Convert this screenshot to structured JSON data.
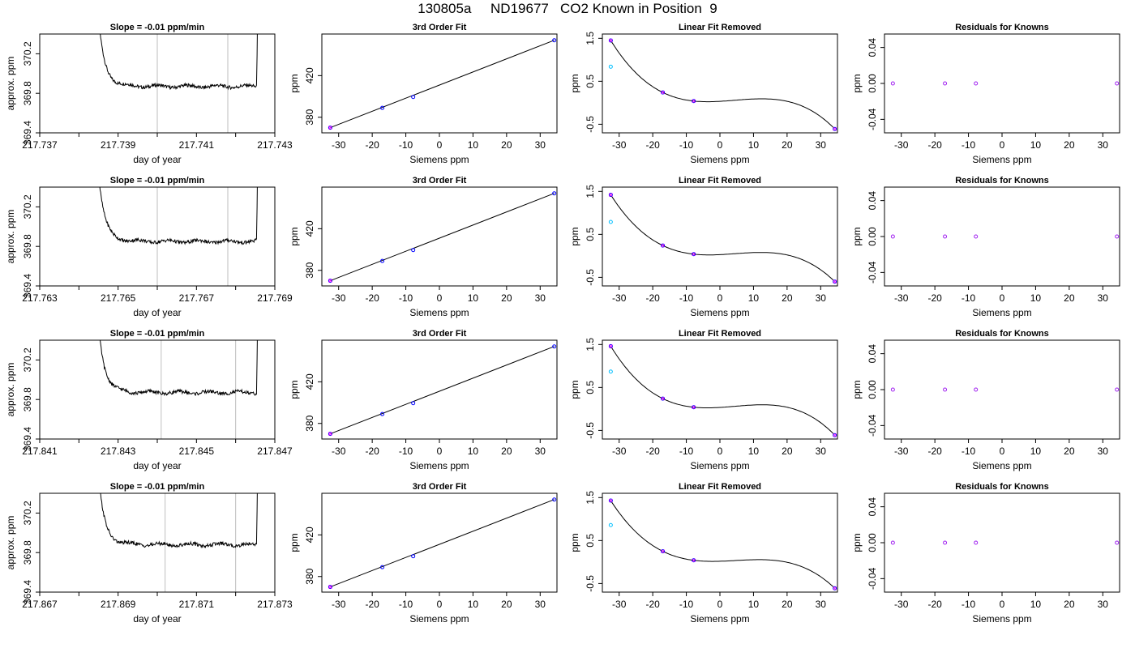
{
  "page_title": "130805a     ND19677   CO2 Known in Position  9",
  "colors": {
    "trace": "#000000",
    "marker_line": "#bebebe",
    "known_point": "#0000ff",
    "fit_cross": "#ff00ff",
    "first_point": "#00bfff",
    "residual_point": "#a020f0"
  },
  "chart_data": [
    {
      "type": "line",
      "row": 0,
      "title": "Slope =  -0.01  ppm/min",
      "xlabel": "day of year",
      "ylabel": "approx. ppm",
      "xlim": [
        217.737,
        217.743
      ],
      "ylim": [
        369.4,
        370.4
      ],
      "x_ticks": [
        "217.737",
        "217.739",
        "217.741",
        "217.743"
      ],
      "y_ticks": [
        "369.4",
        "369.8",
        "370.2"
      ],
      "trace_start": 217.7383,
      "trace_end": 217.7426,
      "plateau": 369.87,
      "markers": [
        217.74,
        217.7418
      ]
    },
    {
      "type": "scatter",
      "row": 0,
      "title": "3rd Order Fit",
      "xlabel": "Siemens ppm",
      "ylabel": "ppm",
      "xlim": [
        -35,
        35
      ],
      "ylim": [
        365,
        460
      ],
      "x_ticks": [
        "-30",
        "-20",
        "-10",
        "0",
        "10",
        "20",
        "30"
      ],
      "y_ticks": [
        "380",
        "420"
      ],
      "x": [
        -32.5,
        -17.0,
        -7.8,
        34.2
      ],
      "y": [
        370.0,
        389.0,
        399.5,
        454.0
      ]
    },
    {
      "type": "scatter",
      "row": 0,
      "title": "Linear Fit Removed",
      "xlabel": "Siemens ppm",
      "ylabel": "ppm",
      "xlim": [
        -35,
        35
      ],
      "ylim": [
        -0.7,
        1.6
      ],
      "x_ticks": [
        "-30",
        "-20",
        "-10",
        "0",
        "10",
        "20",
        "30"
      ],
      "y_ticks": [
        "-0.5",
        "0.5",
        "1.5"
      ],
      "x": [
        -32.5,
        -17.0,
        -7.8,
        34.2
      ],
      "y": [
        1.45,
        0.24,
        0.04,
        -0.61
      ],
      "first_point_y": 0.84
    },
    {
      "type": "scatter",
      "row": 0,
      "title": "Residuals for Knowns",
      "xlabel": "Siemens ppm",
      "ylabel": "ppm",
      "xlim": [
        -35,
        35
      ],
      "ylim": [
        -0.055,
        0.055
      ],
      "x_ticks": [
        "-30",
        "-20",
        "-10",
        "0",
        "10",
        "20",
        "30"
      ],
      "y_ticks": [
        "-0.04",
        "0.00",
        "0.04"
      ],
      "x": [
        -32.5,
        -17.0,
        -7.8,
        34.2
      ],
      "y": [
        0.0,
        0.0,
        0.0,
        0.0
      ]
    },
    {
      "type": "line",
      "row": 1,
      "title": "Slope =  -0.01  ppm/min",
      "xlabel": "day of year",
      "ylabel": "approx. ppm",
      "xlim": [
        217.763,
        217.769
      ],
      "ylim": [
        369.4,
        370.4
      ],
      "x_ticks": [
        "217.763",
        "217.765",
        "217.767",
        "217.769"
      ],
      "y_ticks": [
        "369.4",
        "369.8",
        "370.2"
      ],
      "trace_start": 217.7643,
      "trace_end": 217.7686,
      "plateau": 369.85,
      "markers": [
        217.766,
        217.7678
      ]
    },
    {
      "type": "scatter",
      "row": 1,
      "title": "3rd Order Fit",
      "xlabel": "Siemens ppm",
      "ylabel": "ppm",
      "xlim": [
        -35,
        35
      ],
      "ylim": [
        365,
        460
      ],
      "x_ticks": [
        "-30",
        "-20",
        "-10",
        "0",
        "10",
        "20",
        "30"
      ],
      "y_ticks": [
        "380",
        "420"
      ],
      "x": [
        -32.5,
        -17.0,
        -7.8,
        34.2
      ],
      "y": [
        370.0,
        389.0,
        399.5,
        454.0
      ]
    },
    {
      "type": "scatter",
      "row": 1,
      "title": "Linear Fit Removed",
      "xlabel": "Siemens ppm",
      "ylabel": "ppm",
      "xlim": [
        -35,
        35
      ],
      "ylim": [
        -0.7,
        1.6
      ],
      "x_ticks": [
        "-30",
        "-20",
        "-10",
        "0",
        "10",
        "20",
        "30"
      ],
      "y_ticks": [
        "-0.5",
        "0.5",
        "1.5"
      ],
      "x": [
        -32.5,
        -17.0,
        -7.8,
        34.2
      ],
      "y": [
        1.42,
        0.24,
        0.04,
        -0.6
      ],
      "first_point_y": 0.79
    },
    {
      "type": "scatter",
      "row": 1,
      "title": "Residuals for Knowns",
      "xlabel": "Siemens ppm",
      "ylabel": "ppm",
      "xlim": [
        -35,
        35
      ],
      "ylim": [
        -0.055,
        0.055
      ],
      "x_ticks": [
        "-30",
        "-20",
        "-10",
        "0",
        "10",
        "20",
        "30"
      ],
      "y_ticks": [
        "-0.04",
        "0.00",
        "0.04"
      ],
      "x": [
        -32.5,
        -17.0,
        -7.8,
        34.2
      ],
      "y": [
        0.0,
        0.0,
        0.0,
        0.0
      ]
    },
    {
      "type": "line",
      "row": 2,
      "title": "Slope =  -0.01  ppm/min",
      "xlabel": "day of year",
      "ylabel": "approx. ppm",
      "xlim": [
        217.841,
        217.847
      ],
      "ylim": [
        369.4,
        370.4
      ],
      "x_ticks": [
        "217.841",
        "217.843",
        "217.845",
        "217.847"
      ],
      "y_ticks": [
        "369.4",
        "369.8",
        "370.2"
      ],
      "trace_start": 217.8423,
      "trace_end": 217.8466,
      "plateau": 369.87,
      "markers": [
        217.8441,
        217.846
      ]
    },
    {
      "type": "scatter",
      "row": 2,
      "title": "3rd Order Fit",
      "xlabel": "Siemens ppm",
      "ylabel": "ppm",
      "xlim": [
        -35,
        35
      ],
      "ylim": [
        365,
        460
      ],
      "x_ticks": [
        "-30",
        "-20",
        "-10",
        "0",
        "10",
        "20",
        "30"
      ],
      "y_ticks": [
        "380",
        "420"
      ],
      "x": [
        -32.5,
        -17.0,
        -7.8,
        34.2
      ],
      "y": [
        370.0,
        389.0,
        399.5,
        454.0
      ]
    },
    {
      "type": "scatter",
      "row": 2,
      "title": "Linear Fit Removed",
      "xlabel": "Siemens ppm",
      "ylabel": "ppm",
      "xlim": [
        -35,
        35
      ],
      "ylim": [
        -0.7,
        1.6
      ],
      "x_ticks": [
        "-30",
        "-20",
        "-10",
        "0",
        "10",
        "20",
        "30"
      ],
      "y_ticks": [
        "-0.5",
        "0.5",
        "1.5"
      ],
      "x": [
        -32.5,
        -17.0,
        -7.8,
        34.2
      ],
      "y": [
        1.46,
        0.24,
        0.04,
        -0.61
      ],
      "first_point_y": 0.87
    },
    {
      "type": "scatter",
      "row": 2,
      "title": "Residuals for Knowns",
      "xlabel": "Siemens ppm",
      "ylabel": "ppm",
      "xlim": [
        -35,
        35
      ],
      "ylim": [
        -0.055,
        0.055
      ],
      "x_ticks": [
        "-30",
        "-20",
        "-10",
        "0",
        "10",
        "20",
        "30"
      ],
      "y_ticks": [
        "-0.04",
        "0.00",
        "0.04"
      ],
      "x": [
        -32.5,
        -17.0,
        -7.8,
        34.2
      ],
      "y": [
        0.0,
        0.0,
        0.0,
        0.0
      ]
    },
    {
      "type": "line",
      "row": 3,
      "title": "Slope =  -0.01  ppm/min",
      "xlabel": "day of year",
      "ylabel": "approx. ppm",
      "xlim": [
        217.867,
        217.873
      ],
      "ylim": [
        369.4,
        370.4
      ],
      "x_ticks": [
        "217.867",
        "217.869",
        "217.871",
        "217.873"
      ],
      "y_ticks": [
        "369.4",
        "369.8",
        "370.2"
      ],
      "trace_start": 217.8683,
      "trace_end": 217.8726,
      "plateau": 369.88,
      "markers": [
        217.8702,
        217.872
      ]
    },
    {
      "type": "scatter",
      "row": 3,
      "title": "3rd Order Fit",
      "xlabel": "Siemens ppm",
      "ylabel": "ppm",
      "xlim": [
        -35,
        35
      ],
      "ylim": [
        365,
        460
      ],
      "x_ticks": [
        "-30",
        "-20",
        "-10",
        "0",
        "10",
        "20",
        "30"
      ],
      "y_ticks": [
        "380",
        "420"
      ],
      "x": [
        -32.5,
        -17.0,
        -7.8,
        34.2
      ],
      "y": [
        370.0,
        389.0,
        399.5,
        454.0
      ]
    },
    {
      "type": "scatter",
      "row": 3,
      "title": "Linear Fit Removed",
      "xlabel": "Siemens ppm",
      "ylabel": "ppm",
      "xlim": [
        -35,
        35
      ],
      "ylim": [
        -0.7,
        1.6
      ],
      "x_ticks": [
        "-30",
        "-20",
        "-10",
        "0",
        "10",
        "20",
        "30"
      ],
      "y_ticks": [
        "-0.5",
        "0.5",
        "1.5"
      ],
      "x": [
        -32.5,
        -17.0,
        -7.8,
        34.2
      ],
      "y": [
        1.43,
        0.25,
        0.04,
        -0.61
      ],
      "first_point_y": 0.86
    },
    {
      "type": "scatter",
      "row": 3,
      "title": "Residuals for Knowns",
      "xlabel": "Siemens ppm",
      "ylabel": "ppm",
      "xlim": [
        -35,
        35
      ],
      "ylim": [
        -0.055,
        0.055
      ],
      "x_ticks": [
        "-30",
        "-20",
        "-10",
        "0",
        "10",
        "20",
        "30"
      ],
      "y_ticks": [
        "-0.04",
        "0.00",
        "0.04"
      ],
      "x": [
        -32.5,
        -17.0,
        -7.8,
        34.2
      ],
      "y": [
        0.0,
        0.0,
        0.0,
        0.0
      ]
    }
  ]
}
